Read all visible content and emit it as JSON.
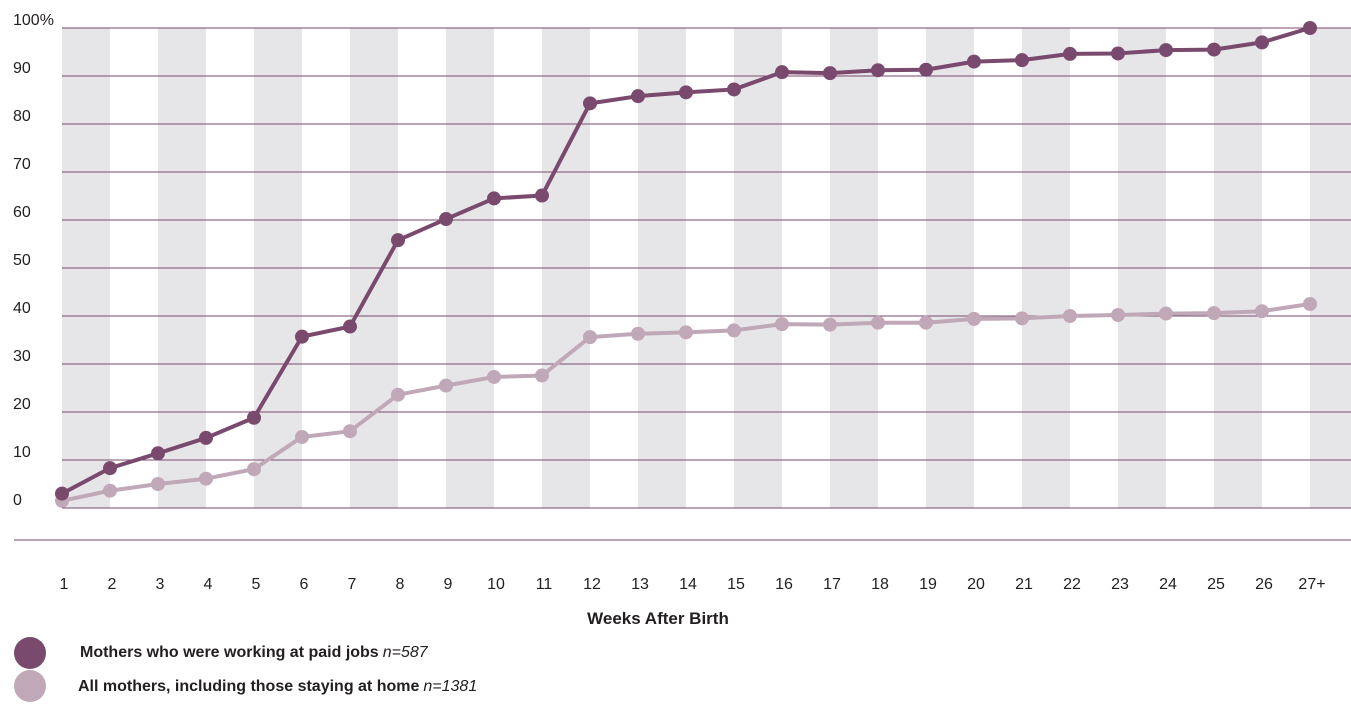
{
  "chart_data": {
    "type": "line",
    "xlabel": "Weeks After Birth",
    "ylabel": "",
    "categories": [
      "1",
      "2",
      "3",
      "4",
      "5",
      "6",
      "7",
      "8",
      "9",
      "10",
      "11",
      "12",
      "13",
      "14",
      "15",
      "16",
      "17",
      "18",
      "19",
      "20",
      "21",
      "22",
      "23",
      "24",
      "25",
      "26",
      "27+"
    ],
    "ylim": [
      0,
      100
    ],
    "yticks": [
      "0",
      "10",
      "20",
      "30",
      "40",
      "50",
      "60",
      "70",
      "80",
      "90",
      "100%"
    ],
    "grid": true,
    "legend_position": "bottom-left",
    "series": [
      {
        "name": "Mothers who were working at paid jobs",
        "n_label": "n=587",
        "color": "#7a4a6e",
        "values": [
          3,
          8.3,
          11.4,
          14.6,
          18.8,
          35.7,
          37.8,
          55.8,
          60.2,
          64.5,
          65.1,
          84.3,
          85.8,
          86.6,
          87.2,
          90.8,
          90.6,
          91.2,
          91.3,
          93.0,
          93.3,
          94.6,
          94.7,
          95.4,
          95.5,
          97.0,
          100
        ]
      },
      {
        "name": "All mothers, including those staying at home",
        "n_label": "n=1381",
        "color": "#c0a8b8",
        "values": [
          1.5,
          3.6,
          5.0,
          6.1,
          8.1,
          14.8,
          16.0,
          23.6,
          25.5,
          27.3,
          27.6,
          35.6,
          36.3,
          36.6,
          37.0,
          38.3,
          38.2,
          38.6,
          38.6,
          39.4,
          39.5,
          40.0,
          40.2,
          40.5,
          40.6,
          41.0,
          42.5
        ]
      }
    ]
  }
}
